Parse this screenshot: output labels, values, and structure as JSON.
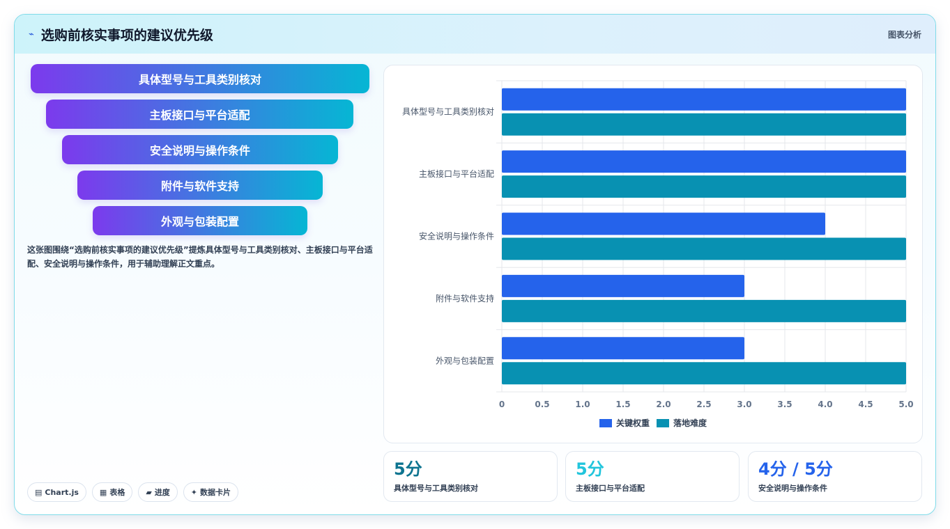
{
  "header": {
    "logo_icon": "⌁",
    "title": "选购前核实事项的建议优先级",
    "tag": "图表分析"
  },
  "funnel": {
    "items": [
      "具体型号与工具类别核对",
      "主板接口与平台适配",
      "安全说明与操作条件",
      "附件与软件支持",
      "外观与包装配置"
    ]
  },
  "description": "这张图围绕“选购前核实事项的建议优先级”提炼具体型号与工具类别核对、主板接口与平台适配、安全说明与操作条件，用于辅助理解正文重点。",
  "chips": [
    {
      "icon": "▤",
      "label": "Chart.js"
    },
    {
      "icon": "▦",
      "label": "表格"
    },
    {
      "icon": "▰",
      "label": "进度"
    },
    {
      "icon": "✦",
      "label": "数据卡片"
    }
  ],
  "chart_data": {
    "type": "bar",
    "orientation": "horizontal",
    "categories": [
      "具体型号与工具类别核对",
      "主板接口与平台适配",
      "安全说明与操作条件",
      "附件与软件支持",
      "外观与包装配置"
    ],
    "series": [
      {
        "name": "关键权重",
        "values": [
          5,
          5,
          4,
          3,
          3
        ],
        "color": "#2563eb"
      },
      {
        "name": "落地难度",
        "values": [
          5,
          5,
          5,
          5,
          5
        ],
        "color": "#0891b2"
      }
    ],
    "xlim": [
      0,
      5
    ],
    "xticks": [
      "0",
      "0.5",
      "1.0",
      "1.5",
      "2.0",
      "2.5",
      "3.0",
      "3.5",
      "4.0",
      "4.5",
      "5.0"
    ],
    "grid": true,
    "legend": "bottom"
  },
  "stats": [
    {
      "value": "5分",
      "label": "具体型号与工具类别核对",
      "color": "#0e7490"
    },
    {
      "value": "5分",
      "label": "主板接口与平台适配",
      "color": "#22c5dc"
    },
    {
      "value": "4分 / 5分",
      "label": "安全说明与操作条件",
      "color": "#2563eb"
    }
  ]
}
